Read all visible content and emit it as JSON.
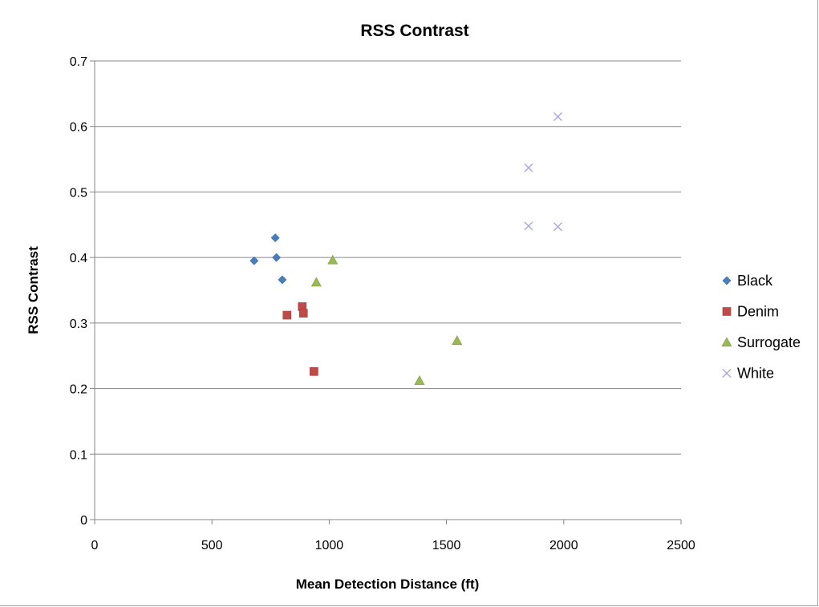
{
  "chart_data": {
    "type": "scatter",
    "title": "RSS Contrast",
    "xlabel": "Mean Detection Distance (ft)",
    "ylabel": "RSS Contrast",
    "xlim": [
      0,
      2500
    ],
    "ylim": [
      0,
      0.7
    ],
    "xticks": [
      "0",
      "500",
      "1000",
      "1500",
      "2000",
      "2500"
    ],
    "yticks": [
      "0",
      "0.1",
      "0.2",
      "0.3",
      "0.4",
      "0.5",
      "0.6",
      "0.7"
    ],
    "grid": "horizontal",
    "legend_position": "right",
    "series": [
      {
        "name": "Black",
        "marker": "diamond",
        "color": "#4a7ebb",
        "x": [
          680,
          770,
          775,
          800
        ],
        "y": [
          0.395,
          0.43,
          0.4,
          0.366
        ]
      },
      {
        "name": "Denim",
        "marker": "square",
        "color": "#be4b48",
        "x": [
          820,
          885,
          890,
          935
        ],
        "y": [
          0.312,
          0.325,
          0.315,
          0.226
        ]
      },
      {
        "name": "Surrogate",
        "marker": "triangle",
        "color": "#98b954",
        "x": [
          945,
          1015,
          1385,
          1545
        ],
        "y": [
          0.362,
          0.396,
          0.212,
          0.273
        ]
      },
      {
        "name": "White",
        "marker": "x",
        "color": "#a9a6d8",
        "x": [
          1850,
          1850,
          1975,
          1975
        ],
        "y": [
          0.537,
          0.448,
          0.615,
          0.447
        ]
      }
    ]
  }
}
